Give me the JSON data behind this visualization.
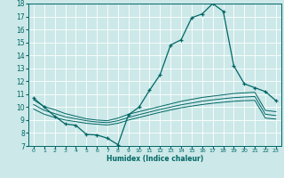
{
  "xlabel": "Humidex (Indice chaleur)",
  "xlim": [
    -0.5,
    23.5
  ],
  "ylim": [
    7,
    18
  ],
  "xticks": [
    0,
    1,
    2,
    3,
    4,
    5,
    6,
    7,
    8,
    9,
    10,
    11,
    12,
    13,
    14,
    15,
    16,
    17,
    18,
    19,
    20,
    21,
    22,
    23
  ],
  "yticks": [
    7,
    8,
    9,
    10,
    11,
    12,
    13,
    14,
    15,
    16,
    17,
    18
  ],
  "bg_color": "#cce8e8",
  "line_color": "#006666",
  "grid_color": "#ffffff",
  "line1_x": [
    0,
    1,
    2,
    3,
    4,
    5,
    6,
    7,
    8,
    9,
    10,
    11,
    12,
    13,
    14,
    15,
    16,
    17,
    18,
    19,
    20,
    21,
    22,
    23
  ],
  "line1_y": [
    10.7,
    10.0,
    9.3,
    8.7,
    8.6,
    7.9,
    7.85,
    7.6,
    7.1,
    9.4,
    10.0,
    11.3,
    12.5,
    14.8,
    15.2,
    16.9,
    17.2,
    18.0,
    17.4,
    13.2,
    11.8,
    11.5,
    11.2,
    10.5
  ],
  "line2_x": [
    0,
    1,
    2,
    3,
    4,
    5,
    6,
    7,
    8,
    9,
    10,
    11,
    12,
    13,
    14,
    15,
    16,
    17,
    18,
    19,
    20,
    21,
    22,
    23
  ],
  "line2_y": [
    10.55,
    10.05,
    9.8,
    9.5,
    9.3,
    9.1,
    9.0,
    8.95,
    9.15,
    9.45,
    9.65,
    9.85,
    10.05,
    10.25,
    10.45,
    10.6,
    10.75,
    10.85,
    10.95,
    11.05,
    11.1,
    11.15,
    9.75,
    9.65
  ],
  "line3_x": [
    0,
    1,
    2,
    3,
    4,
    5,
    6,
    7,
    8,
    9,
    10,
    11,
    12,
    13,
    14,
    15,
    16,
    17,
    18,
    19,
    20,
    21,
    22,
    23
  ],
  "line3_y": [
    10.2,
    9.75,
    9.5,
    9.25,
    9.1,
    8.95,
    8.85,
    8.8,
    8.95,
    9.2,
    9.42,
    9.62,
    9.82,
    10.0,
    10.18,
    10.32,
    10.46,
    10.56,
    10.65,
    10.73,
    10.78,
    10.82,
    9.45,
    9.35
  ],
  "line4_x": [
    0,
    1,
    2,
    3,
    4,
    5,
    6,
    7,
    8,
    9,
    10,
    11,
    12,
    13,
    14,
    15,
    16,
    17,
    18,
    19,
    20,
    21,
    22,
    23
  ],
  "line4_y": [
    9.85,
    9.45,
    9.2,
    9.0,
    8.88,
    8.75,
    8.68,
    8.62,
    8.75,
    9.0,
    9.2,
    9.4,
    9.6,
    9.78,
    9.95,
    10.08,
    10.2,
    10.3,
    10.38,
    10.45,
    10.5,
    10.52,
    9.15,
    9.08
  ]
}
